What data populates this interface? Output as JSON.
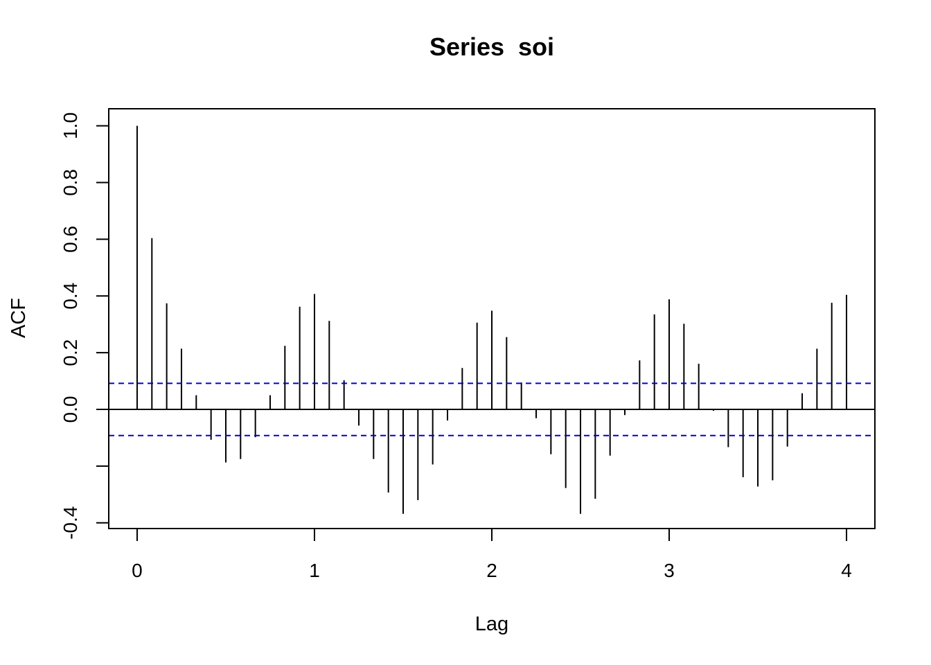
{
  "chart_data": {
    "type": "bar",
    "title": "Series  soi",
    "xlabel": "Lag",
    "ylabel": "ACF",
    "xlim": [
      -0.16,
      4.16
    ],
    "ylim": [
      -0.42,
      1.06
    ],
    "x_ticks": [
      0,
      1,
      2,
      3,
      4
    ],
    "x_tick_labels": [
      "0",
      "1",
      "2",
      "3",
      "4"
    ],
    "y_ticks": [
      -0.4,
      0.0,
      0.2,
      0.4,
      0.6,
      0.8,
      1.0
    ],
    "y_tick_labels": [
      "-0.4",
      "0.0",
      "0.2",
      "0.4",
      "0.6",
      "0.8",
      "1.0"
    ],
    "y_minor_ticks": [
      -0.2
    ],
    "confidence_band": 0.092,
    "lags": [
      0,
      0.0833,
      0.1667,
      0.25,
      0.3333,
      0.4167,
      0.5,
      0.5833,
      0.6667,
      0.75,
      0.8333,
      0.9167,
      1.0,
      1.0833,
      1.1667,
      1.25,
      1.3333,
      1.4167,
      1.5,
      1.5833,
      1.6667,
      1.75,
      1.8333,
      1.9167,
      2.0,
      2.0833,
      2.1667,
      2.25,
      2.3333,
      2.4167,
      2.5,
      2.5833,
      2.6667,
      2.75,
      2.8333,
      2.9167,
      3.0,
      3.0833,
      3.1667,
      3.25,
      3.3333,
      3.4167,
      3.5,
      3.5833,
      3.6667,
      3.75,
      3.8333,
      3.9167,
      4.0
    ],
    "acf": [
      1.0,
      0.604,
      0.374,
      0.214,
      0.05,
      -0.107,
      -0.187,
      -0.175,
      -0.098,
      0.05,
      0.224,
      0.362,
      0.407,
      0.312,
      0.103,
      -0.057,
      -0.175,
      -0.293,
      -0.368,
      -0.32,
      -0.194,
      -0.039,
      0.146,
      0.306,
      0.348,
      0.255,
      0.095,
      -0.031,
      -0.158,
      -0.277,
      -0.368,
      -0.315,
      -0.163,
      -0.02,
      0.173,
      0.335,
      0.388,
      0.302,
      0.161,
      -0.005,
      -0.133,
      -0.239,
      -0.272,
      -0.25,
      -0.131,
      0.057,
      0.214,
      0.376,
      0.404
    ]
  }
}
